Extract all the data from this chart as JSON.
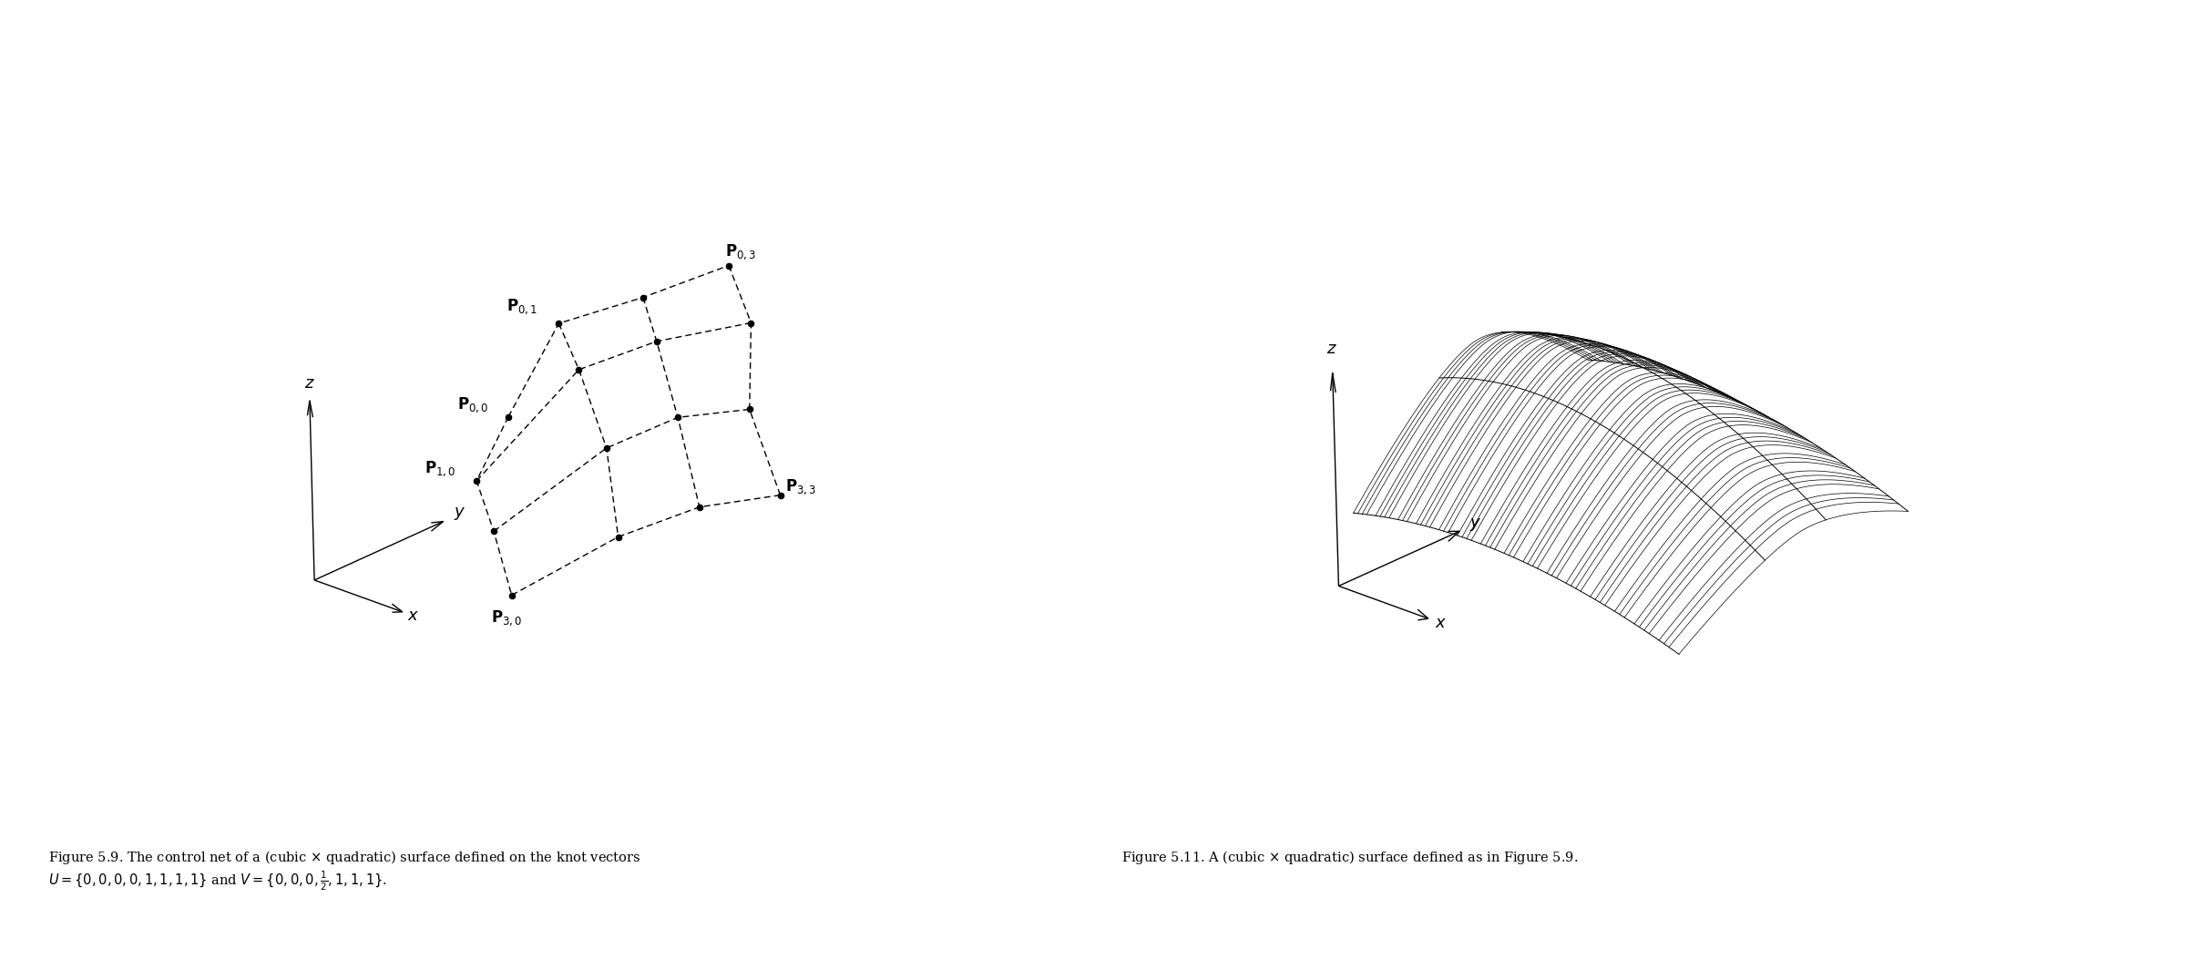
{
  "background_color": "#ffffff",
  "fig_width": 24.04,
  "fig_height": 10.53,
  "ctrl_pts_left": [
    [
      [
        -3,
        0,
        0
      ],
      [
        -3,
        1,
        0.4
      ],
      [
        -3,
        2,
        0.4
      ],
      [
        -3,
        3,
        0.0
      ]
    ],
    [
      [
        -2,
        0,
        0.5
      ],
      [
        -2,
        1,
        1.0
      ],
      [
        -2,
        2,
        1.0
      ],
      [
        -2,
        3,
        0.5
      ]
    ],
    [
      [
        -1,
        0,
        0.5
      ],
      [
        -1,
        1,
        1.0
      ],
      [
        -1,
        2,
        1.0
      ],
      [
        -1,
        3,
        0.5
      ]
    ],
    [
      [
        0,
        0,
        0
      ],
      [
        0,
        1,
        0.4
      ],
      [
        0,
        2,
        0.4
      ],
      [
        0,
        3,
        0.0
      ]
    ]
  ],
  "ctrl_pts_surface": [
    [
      [
        -3,
        0,
        0
      ],
      [
        -3,
        1,
        0.4
      ],
      [
        -3,
        2,
        0.4
      ],
      [
        -3,
        3,
        0.0
      ]
    ],
    [
      [
        -2,
        0,
        0.5
      ],
      [
        -2,
        1,
        1.0
      ],
      [
        -2,
        2,
        1.0
      ],
      [
        -2,
        3,
        0.5
      ]
    ],
    [
      [
        -1,
        0,
        0.5
      ],
      [
        -1,
        1,
        1.0
      ],
      [
        -1,
        2,
        1.0
      ],
      [
        -1,
        3,
        0.5
      ]
    ],
    [
      [
        0,
        0,
        0
      ],
      [
        0,
        1,
        0.4
      ],
      [
        0,
        2,
        0.4
      ],
      [
        0,
        3,
        0.0
      ]
    ]
  ],
  "U_knots": [
    0,
    0,
    0,
    0,
    1,
    1,
    1,
    1
  ],
  "V_knots": [
    0,
    0,
    0,
    0.5,
    1,
    1,
    1
  ],
  "elev1": 22,
  "azim1": -50,
  "elev2": 22,
  "azim2": -50
}
